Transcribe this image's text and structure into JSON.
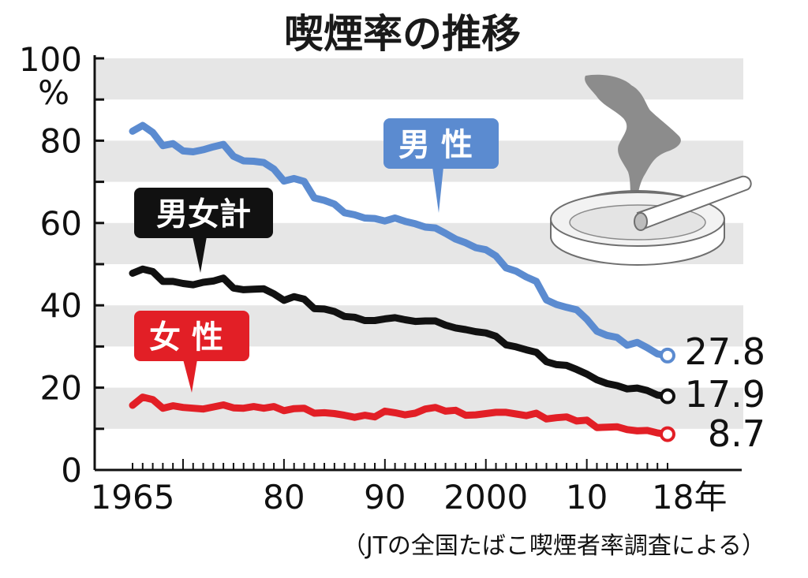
{
  "title": "喫煙率の推移",
  "source": "（JTの全国たばこ喫煙者率調査による）",
  "icon": "ashtray-cigarette-icon",
  "chart_data": {
    "type": "line",
    "ylim": [
      0,
      100
    ],
    "y_unit": "%",
    "yticks": [
      {
        "value": 0,
        "label": "0"
      },
      {
        "value": 20,
        "label": "20"
      },
      {
        "value": 40,
        "label": "40"
      },
      {
        "value": 60,
        "label": "60"
      },
      {
        "value": 80,
        "label": "80"
      },
      {
        "value": 100,
        "label": "100"
      }
    ],
    "xlim": [
      1965,
      2018
    ],
    "xticks": [
      {
        "value": 1965,
        "label": "1965"
      },
      {
        "value": 1980,
        "label": "80"
      },
      {
        "value": 1990,
        "label": "90"
      },
      {
        "value": 2000,
        "label": "2000"
      },
      {
        "value": 2010,
        "label": "10"
      },
      {
        "value": 2018,
        "label": "18年"
      }
    ],
    "grid": "horizontal bands",
    "x": [
      1965,
      1966,
      1967,
      1968,
      1969,
      1970,
      1971,
      1972,
      1973,
      1974,
      1975,
      1976,
      1977,
      1978,
      1979,
      1980,
      1981,
      1982,
      1983,
      1984,
      1985,
      1986,
      1987,
      1988,
      1989,
      1990,
      1991,
      1992,
      1993,
      1994,
      1995,
      1996,
      1997,
      1998,
      1999,
      2000,
      2001,
      2002,
      2003,
      2004,
      2005,
      2006,
      2007,
      2008,
      2009,
      2010,
      2011,
      2012,
      2013,
      2014,
      2015,
      2016,
      2017,
      2018
    ],
    "series": [
      {
        "name": "男性",
        "color": "#5b8bd0",
        "end_label": "27.8",
        "values": [
          82.3,
          83.7,
          82.0,
          78.8,
          79.3,
          77.5,
          77.3,
          77.8,
          78.5,
          79.1,
          76.2,
          75.1,
          75.0,
          74.7,
          73.1,
          70.2,
          70.8,
          70.1,
          66.1,
          65.5,
          64.6,
          62.5,
          62.0,
          61.2,
          61.1,
          60.5,
          61.2,
          60.4,
          59.8,
          59.0,
          58.8,
          57.5,
          56.1,
          55.2,
          54.0,
          53.5,
          52.0,
          49.1,
          48.3,
          46.9,
          45.8,
          41.3,
          40.2,
          39.5,
          38.9,
          36.6,
          33.7,
          32.7,
          32.2,
          30.3,
          31.0,
          29.7,
          28.2,
          27.8
        ]
      },
      {
        "name": "男女計",
        "color": "#111111",
        "end_label": "17.9",
        "values": [
          47.8,
          48.8,
          48.2,
          45.8,
          45.8,
          45.3,
          45.0,
          45.6,
          45.9,
          46.6,
          44.2,
          43.8,
          43.9,
          44.0,
          42.8,
          41.2,
          42.1,
          41.5,
          39.2,
          39.1,
          38.5,
          37.3,
          37.1,
          36.3,
          36.3,
          36.7,
          37.0,
          36.5,
          36.1,
          36.2,
          36.2,
          35.2,
          34.5,
          34.1,
          33.6,
          33.3,
          32.5,
          30.4,
          29.9,
          29.2,
          28.6,
          26.3,
          25.6,
          25.4,
          24.4,
          23.3,
          21.9,
          21.0,
          20.5,
          19.7,
          19.9,
          19.3,
          18.2,
          17.9
        ]
      },
      {
        "name": "女性",
        "color": "#e21f26",
        "end_label": "8.7",
        "values": [
          15.7,
          17.7,
          17.1,
          15.0,
          15.6,
          15.2,
          15.0,
          14.8,
          15.3,
          15.8,
          15.1,
          15.0,
          15.4,
          15.0,
          15.4,
          14.4,
          14.9,
          15.0,
          13.8,
          13.9,
          13.7,
          13.3,
          12.8,
          13.3,
          12.9,
          14.3,
          13.9,
          13.4,
          13.8,
          14.8,
          15.2,
          14.3,
          14.5,
          13.3,
          13.4,
          13.7,
          14.0,
          14.0,
          13.6,
          13.2,
          13.8,
          12.4,
          12.7,
          12.9,
          11.9,
          12.1,
          10.3,
          10.4,
          10.5,
          9.8,
          9.5,
          9.6,
          9.0,
          8.7
        ]
      }
    ]
  }
}
